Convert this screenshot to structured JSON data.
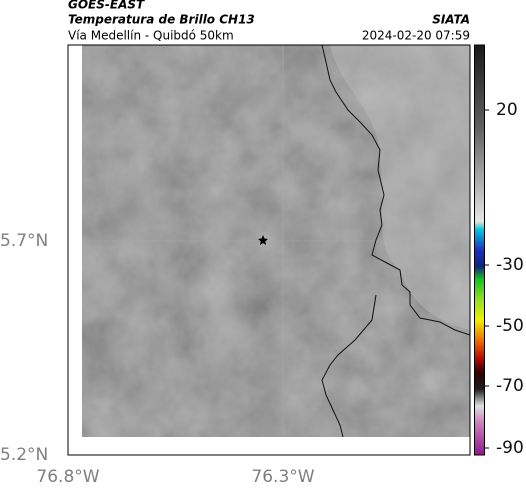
{
  "header": {
    "title": "GOES-EAST",
    "subtitle": "Temperatura de Brillo CH13",
    "route": "Vía Medellín - Quibdó 50km",
    "source": "SIATA",
    "datetime": "2024-02-20 07:59"
  },
  "map": {
    "lat_labels": [
      "5.7°N",
      "5.2°N"
    ],
    "lon_labels": [
      "76.8°W",
      "76.3°W"
    ]
  },
  "colorbar": {
    "ticks": [
      20,
      -30,
      -50,
      -70,
      -90
    ]
  }
}
